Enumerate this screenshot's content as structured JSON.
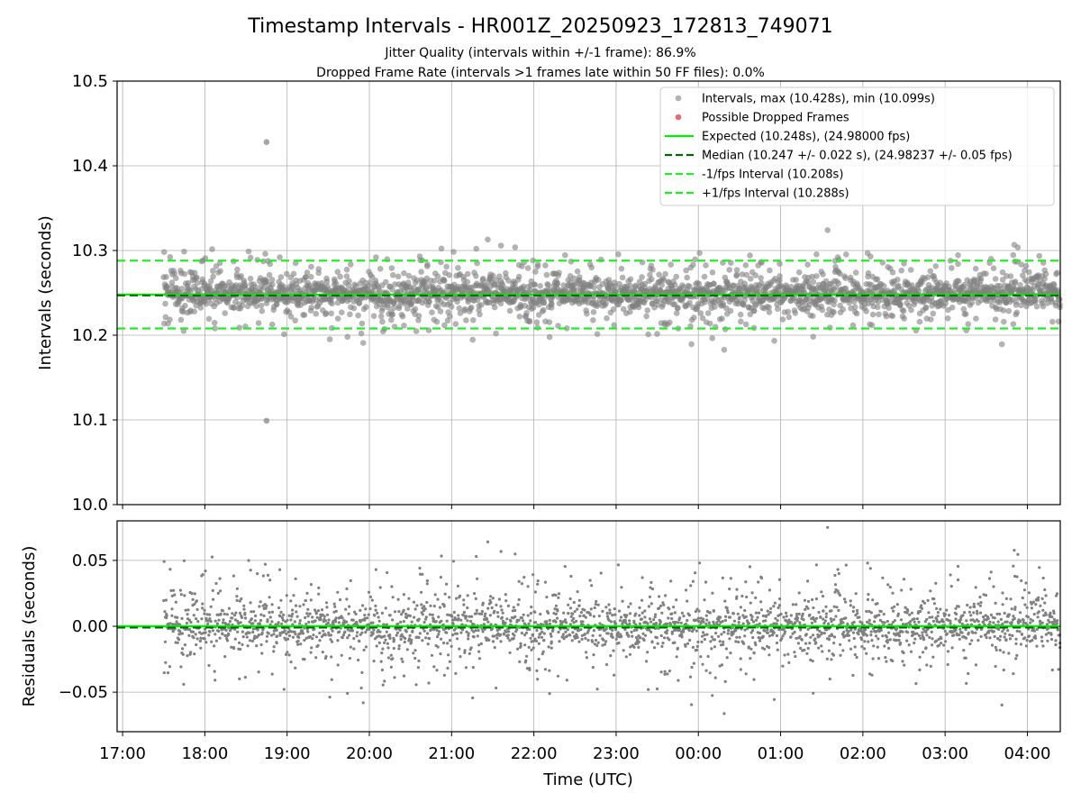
{
  "chart_data": [
    {
      "type": "scatter",
      "title": "Timestamp Intervals - HR001Z_20250923_172813_749071",
      "subtitle_lines": [
        "Jitter Quality (intervals within +/-1 frame): 86.9%",
        "Dropped Frame Rate (intervals >1 frames late within 50 FF files): 0.0%"
      ],
      "ylabel": "Intervals (seconds)",
      "ylim": [
        10.0,
        10.5
      ],
      "yticks": [
        "10.0",
        "10.1",
        "10.2",
        "10.3",
        "10.4",
        "10.5"
      ],
      "xlim": [
        "16:56",
        "04:24"
      ],
      "grid": true,
      "legend_position": "top-right",
      "colors": {
        "intervals": "#808080",
        "dropped": "#e8434b",
        "expected": "#00ee00",
        "median": "#006400",
        "bounds": "#22ee22"
      },
      "legend": [
        {
          "label": "Intervals, max (10.428s), min (10.099s)",
          "kind": "dot-gray"
        },
        {
          "label": "Possible Dropped Frames",
          "kind": "dot-red"
        },
        {
          "label": "Expected (10.248s), (24.98000 fps)",
          "kind": "line-expected"
        },
        {
          "label": "Median (10.247 +/- 0.022 s), (24.98237 +/- 0.05 fps)",
          "kind": "line-median"
        },
        {
          "label": "-1/fps Interval (10.208s)",
          "kind": "line-bound"
        },
        {
          "label": "+1/fps Interval (10.288s)",
          "kind": "line-bound"
        }
      ],
      "reference_lines": {
        "expected": 10.248,
        "median": 10.247,
        "lower": 10.208,
        "upper": 10.288
      },
      "series_range": [
        "17:30",
        "04:24"
      ],
      "max_point": {
        "time": "18:45",
        "value": 10.428
      },
      "min_point": {
        "time": "18:45",
        "value": 10.099
      },
      "cloud_center": 10.249,
      "cloud_spread": 0.022
    },
    {
      "type": "scatter",
      "ylabel": "Residuals (seconds)",
      "ylim": [
        -0.08,
        0.08
      ],
      "yticks": [
        "−0.05",
        "0.00",
        "0.05"
      ],
      "xlabel": "Time (UTC)",
      "xticks": [
        "17:00",
        "18:00",
        "19:00",
        "20:00",
        "21:00",
        "22:00",
        "23:00",
        "00:00",
        "01:00",
        "02:00",
        "03:00",
        "04:00"
      ],
      "xlim": [
        "16:56",
        "04:24"
      ],
      "grid": true,
      "reference_lines": {
        "expected": 0.0,
        "median": -0.001
      },
      "series_range": [
        "17:30",
        "04:24"
      ],
      "cloud_center": 0.0,
      "cloud_spread": 0.022
    }
  ]
}
